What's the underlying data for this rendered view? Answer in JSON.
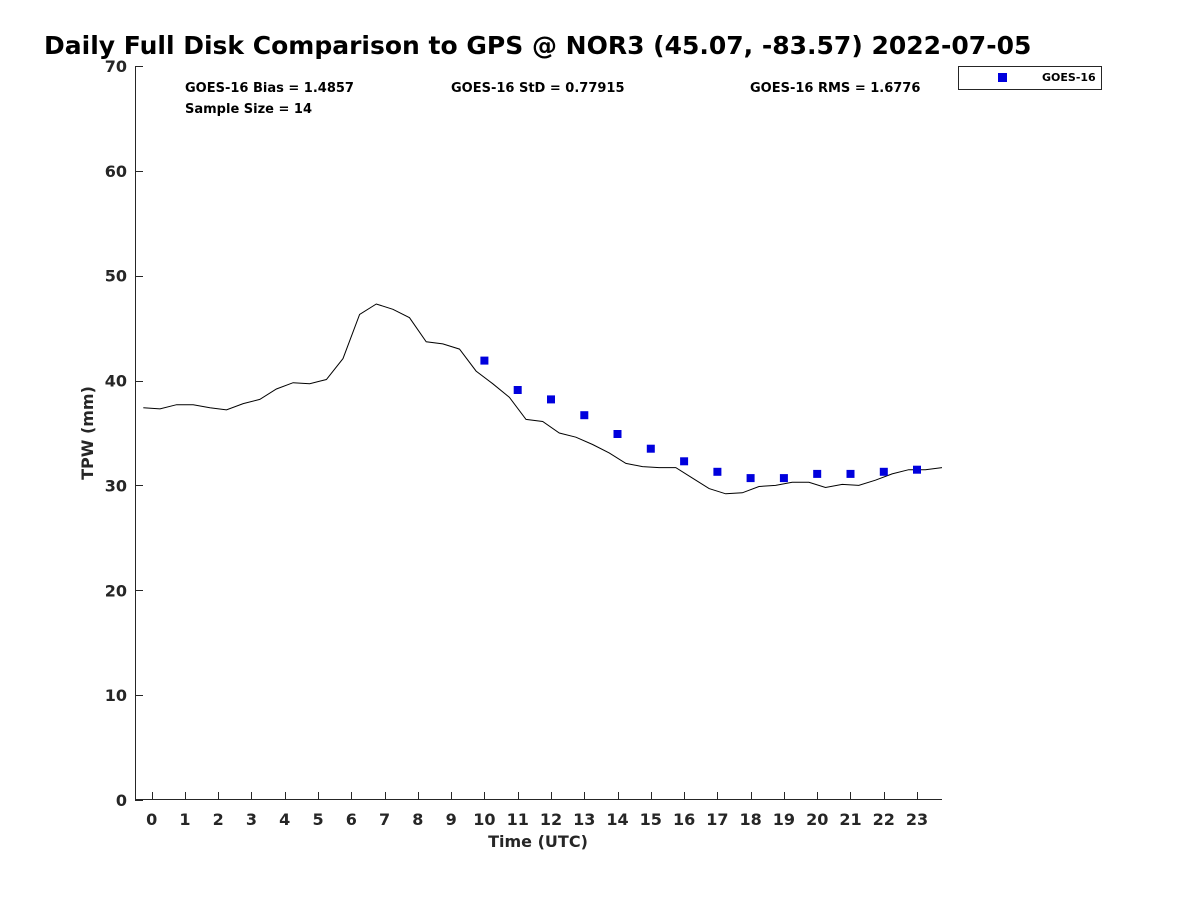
{
  "chart_data": {
    "type": "scatter",
    "title": "Daily Full Disk Comparison to GPS @ NOR3 (45.07, -83.57) 2022-07-05",
    "xlabel": "Time (UTC)",
    "ylabel": "TPW (mm)",
    "xlim": [
      -0.5,
      23.75
    ],
    "ylim": [
      0,
      70
    ],
    "x_ticks": [
      0,
      1,
      2,
      3,
      4,
      5,
      6,
      7,
      8,
      9,
      10,
      11,
      12,
      13,
      14,
      15,
      16,
      17,
      18,
      19,
      20,
      21,
      22,
      23
    ],
    "x_tick_labels": [
      "0",
      "1",
      "2",
      "3",
      "4",
      "5",
      "6",
      "7",
      "8",
      "9",
      "10",
      "11",
      "12",
      "13",
      "14",
      "15",
      "16",
      "17",
      "18",
      "19",
      "20",
      "21",
      "22",
      "23"
    ],
    "y_ticks": [
      0,
      10,
      20,
      30,
      40,
      50,
      60,
      70
    ],
    "y_tick_labels": [
      "0",
      "10",
      "20",
      "30",
      "40",
      "50",
      "60",
      "70"
    ],
    "grid": false,
    "legend_position": "outside-top-right",
    "stats": {
      "bias": "GOES-16 Bias = 1.4857",
      "std": "GOES-16 StD = 0.77915",
      "rms": "GOES-16 RMS = 1.6776",
      "sample_size": "Sample Size = 14"
    },
    "series": [
      {
        "name": "GOES-16",
        "type": "scatter",
        "marker": "square",
        "color": "#0000dd",
        "x": [
          10,
          11,
          12,
          13,
          14,
          15,
          16,
          17,
          18,
          19,
          20,
          21,
          22,
          23
        ],
        "y": [
          41.9,
          39.1,
          38.2,
          36.7,
          34.9,
          33.5,
          32.3,
          31.3,
          30.7,
          30.7,
          31.1,
          31.1,
          31.3,
          31.5
        ]
      },
      {
        "type": "line",
        "color": "#000000",
        "x": [
          -0.25,
          0.25,
          0.75,
          1.25,
          1.75,
          2.25,
          2.75,
          3.25,
          3.75,
          4.25,
          4.75,
          5.25,
          5.75,
          6.25,
          6.75,
          7.25,
          7.75,
          8.25,
          8.75,
          9.25,
          9.75,
          10.25,
          10.75,
          11.25,
          11.75,
          12.25,
          12.75,
          13.25,
          13.75,
          14.25,
          14.75,
          15.25,
          15.75,
          16.25,
          16.75,
          17.25,
          17.75,
          18.25,
          18.75,
          19.25,
          19.75,
          20.25,
          20.75,
          21.25,
          21.75,
          22.25,
          22.75,
          23.25,
          23.75
        ],
        "y": [
          37.4,
          37.3,
          37.7,
          37.7,
          37.4,
          37.2,
          37.8,
          38.2,
          39.2,
          39.8,
          39.7,
          40.1,
          42.1,
          46.3,
          47.3,
          46.8,
          46.0,
          43.7,
          43.5,
          43.0,
          40.9,
          39.7,
          38.4,
          36.3,
          36.1,
          35.0,
          34.6,
          33.9,
          33.1,
          32.1,
          31.8,
          31.7,
          31.7,
          30.7,
          29.7,
          29.2,
          29.3,
          29.9,
          30.0,
          30.3,
          30.3,
          29.8,
          30.1,
          30.0,
          30.5,
          31.1,
          31.5,
          31.5,
          31.7
        ]
      }
    ]
  }
}
